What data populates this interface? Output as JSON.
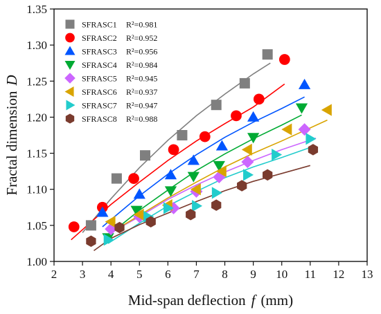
{
  "chart_data": {
    "type": "scatter",
    "title": "",
    "xlabel": "Mid-span deflection",
    "xlabel_symbol": "f",
    "xlabel_unit": "(mm)",
    "ylabel": "Fractal dimension",
    "ylabel_symbol": "D",
    "xlim": [
      2,
      13
    ],
    "ylim": [
      1.0,
      1.35
    ],
    "xticks": [
      2,
      3,
      4,
      5,
      6,
      7,
      8,
      9,
      10,
      11,
      12,
      13
    ],
    "yticks": [
      1.0,
      1.05,
      1.1,
      1.15,
      1.2,
      1.25,
      1.3,
      1.35
    ],
    "grid": false,
    "legend_position": "top-left",
    "series": [
      {
        "name": "SFRASC1",
        "r2": "R²=0.981",
        "marker": "square",
        "color": "#7f7f7f",
        "x": [
          3.3,
          4.2,
          5.2,
          6.5,
          7.7,
          8.7,
          9.5
        ],
        "y": [
          1.05,
          1.115,
          1.147,
          1.175,
          1.217,
          1.247,
          1.287
        ]
      },
      {
        "name": "SFRASC2",
        "r2": "R²=0.952",
        "marker": "circle",
        "color": "#ff0000",
        "x": [
          2.7,
          3.7,
          4.8,
          6.2,
          7.3,
          8.4,
          9.2,
          10.1
        ],
        "y": [
          1.048,
          1.075,
          1.115,
          1.155,
          1.173,
          1.202,
          1.225,
          1.28
        ]
      },
      {
        "name": "SFRASC3",
        "r2": "R²=0.956",
        "marker": "triangle-up",
        "color": "#0055ff",
        "x": [
          3.7,
          5.0,
          6.1,
          6.9,
          7.9,
          9.0,
          10.8
        ],
        "y": [
          1.068,
          1.093,
          1.12,
          1.14,
          1.16,
          1.2,
          1.245
        ]
      },
      {
        "name": "SFRASC4",
        "r2": "R²=0.984",
        "marker": "triangle-down",
        "color": "#00aa33",
        "x": [
          3.9,
          4.9,
          6.1,
          6.9,
          7.8,
          9.0,
          10.7
        ],
        "y": [
          1.033,
          1.071,
          1.098,
          1.118,
          1.133,
          1.172,
          1.213
        ]
      },
      {
        "name": "SFRASC5",
        "r2": "R²=0.945",
        "marker": "diamond",
        "color": "#cc66ff",
        "x": [
          4.0,
          5.0,
          6.2,
          7.0,
          7.8,
          8.8,
          10.8
        ],
        "y": [
          1.045,
          1.062,
          1.074,
          1.097,
          1.117,
          1.138,
          1.183
        ]
      },
      {
        "name": "SFRASC6",
        "r2": "R²=0.937",
        "marker": "triangle-left",
        "color": "#d9a400",
        "x": [
          4.0,
          5.0,
          6.0,
          7.0,
          7.9,
          8.8,
          10.2,
          11.6
        ],
        "y": [
          1.055,
          1.065,
          1.078,
          1.1,
          1.125,
          1.155,
          1.183,
          1.21
        ]
      },
      {
        "name": "SFRASC7",
        "r2": "R²=0.947",
        "marker": "triangle-right",
        "color": "#22cccc",
        "x": [
          3.9,
          5.3,
          6.0,
          7.0,
          7.7,
          8.8,
          9.8,
          11.0
        ],
        "y": [
          1.03,
          1.062,
          1.074,
          1.077,
          1.095,
          1.12,
          1.148,
          1.17
        ]
      },
      {
        "name": "SFRASC8",
        "r2": "R²=0.988",
        "marker": "hexagon",
        "color": "#7a3b2e",
        "x": [
          3.3,
          4.3,
          5.4,
          6.8,
          7.7,
          8.6,
          9.5,
          11.1
        ],
        "y": [
          1.028,
          1.047,
          1.055,
          1.065,
          1.078,
          1.105,
          1.12,
          1.155
        ]
      }
    ],
    "fits": [
      {
        "name": "SFRASC1",
        "color": "#7f7f7f",
        "x": [
          3.0,
          4.0,
          5.0,
          6.0,
          7.0,
          8.0,
          9.0,
          9.6
        ],
        "y": [
          1.04,
          1.087,
          1.13,
          1.168,
          1.202,
          1.232,
          1.26,
          1.275
        ]
      },
      {
        "name": "SFRASC2",
        "color": "#ff0000",
        "x": [
          2.6,
          4.0,
          5.0,
          6.0,
          7.0,
          8.0,
          9.0,
          10.1
        ],
        "y": [
          1.03,
          1.079,
          1.11,
          1.14,
          1.167,
          1.191,
          1.214,
          1.246
        ]
      },
      {
        "name": "SFRASC3",
        "color": "#0055ff",
        "x": [
          3.7,
          5.0,
          6.0,
          7.0,
          8.0,
          9.0,
          10.0,
          10.8
        ],
        "y": [
          1.048,
          1.091,
          1.121,
          1.148,
          1.172,
          1.193,
          1.212,
          1.228
        ]
      },
      {
        "name": "SFRASC4",
        "color": "#00aa33",
        "x": [
          3.8,
          5.0,
          6.0,
          7.0,
          8.0,
          9.0,
          10.0,
          10.7
        ],
        "y": [
          1.033,
          1.071,
          1.099,
          1.126,
          1.149,
          1.17,
          1.189,
          1.203
        ]
      },
      {
        "name": "SFRASC5",
        "color": "#cc66ff",
        "x": [
          3.9,
          5.0,
          6.0,
          7.0,
          8.0,
          9.0,
          10.0,
          11.2
        ],
        "y": [
          1.038,
          1.062,
          1.086,
          1.106,
          1.124,
          1.14,
          1.155,
          1.171
        ]
      },
      {
        "name": "SFRASC6",
        "color": "#d9a400",
        "x": [
          4.0,
          5.0,
          6.0,
          7.0,
          8.0,
          9.0,
          10.0,
          11.6
        ],
        "y": [
          1.04,
          1.064,
          1.088,
          1.11,
          1.131,
          1.15,
          1.167,
          1.196
        ]
      },
      {
        "name": "SFRASC7",
        "color": "#22cccc",
        "x": [
          3.9,
          5.0,
          6.0,
          7.0,
          8.0,
          9.0,
          10.0,
          11.0
        ],
        "y": [
          1.025,
          1.053,
          1.077,
          1.097,
          1.116,
          1.131,
          1.144,
          1.158
        ]
      },
      {
        "name": "SFRASC8",
        "color": "#7a3b2e",
        "x": [
          3.4,
          4.0,
          5.0,
          6.0,
          7.0,
          8.0,
          9.0,
          10.0,
          11.0
        ],
        "y": [
          1.015,
          1.032,
          1.051,
          1.067,
          1.083,
          1.098,
          1.111,
          1.122,
          1.133
        ]
      }
    ]
  }
}
